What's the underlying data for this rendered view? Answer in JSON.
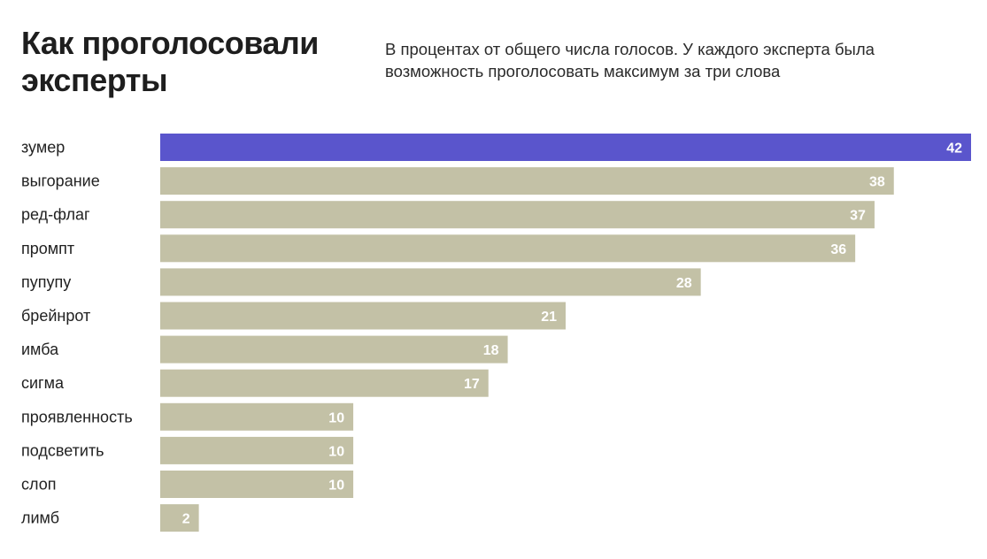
{
  "header": {
    "title": "Как проголосовали эксперты",
    "subtitle": "В процентах от общего числа голосов. У каждого эксперта была возможность проголосовать максимум за три слова"
  },
  "colors": {
    "highlight": "#5a55cc",
    "bar": "#c3c1a6",
    "value_text": "#ffffff",
    "label_text": "#222222"
  },
  "chart_data": {
    "type": "bar",
    "orientation": "horizontal",
    "categories": [
      "зумер",
      "выгорание",
      "ред-флаг",
      "промпт",
      "пупупу",
      "брейнрот",
      "имба",
      "сигма",
      "проявленность",
      "подсветить",
      "слоп",
      "лимб"
    ],
    "values": [
      42,
      38,
      37,
      36,
      28,
      21,
      18,
      17,
      10,
      10,
      10,
      2
    ],
    "highlight_index": 0,
    "title": "Как проголосовали эксперты",
    "subtitle": "В процентах от общего числа голосов. У каждого эксперта была возможность проголосовать максимум за три слова",
    "xlabel": "",
    "ylabel": "",
    "xlim": [
      0,
      42
    ],
    "grid": false,
    "legend": "none",
    "data_labels": "inside-end"
  }
}
